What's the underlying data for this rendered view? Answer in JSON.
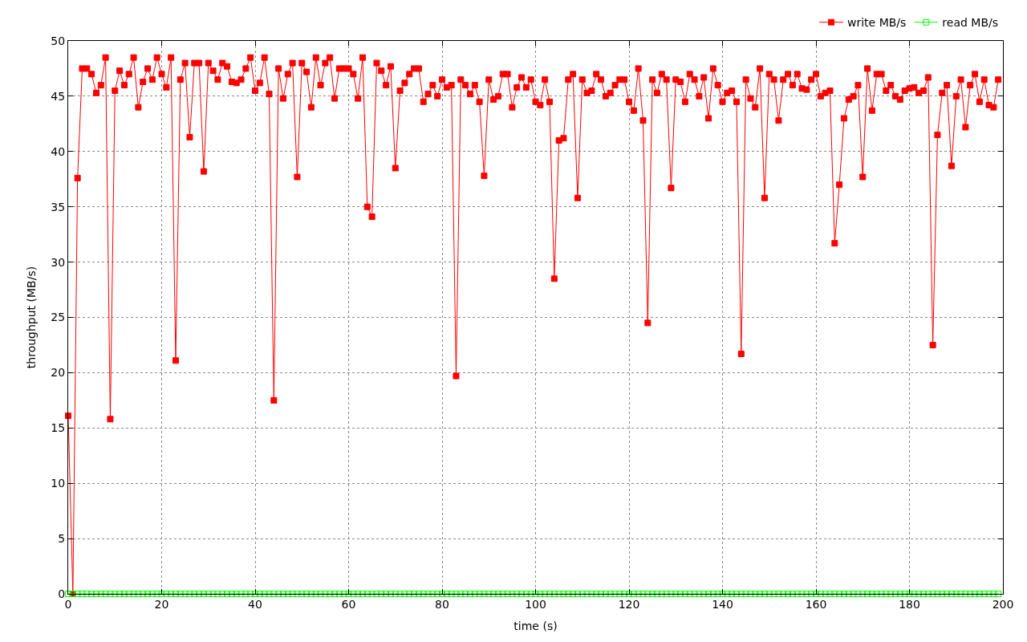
{
  "chart_data": {
    "type": "line",
    "xlabel": "time (s)",
    "ylabel": "throughput (MB/s)",
    "x": [
      0,
      1,
      2,
      3,
      4,
      5,
      6,
      7,
      8,
      9,
      10,
      11,
      12,
      13,
      14,
      15,
      16,
      17,
      18,
      19,
      20,
      21,
      22,
      23,
      24,
      25,
      26,
      27,
      28,
      29,
      30,
      31,
      32,
      33,
      34,
      35,
      36,
      37,
      38,
      39,
      40,
      41,
      42,
      43,
      44,
      45,
      46,
      47,
      48,
      49,
      50,
      51,
      52,
      53,
      54,
      55,
      56,
      57,
      58,
      59,
      60,
      61,
      62,
      63,
      64,
      65,
      66,
      67,
      68,
      69,
      70,
      71,
      72,
      73,
      74,
      75,
      76,
      77,
      78,
      79,
      80,
      81,
      82,
      83,
      84,
      85,
      86,
      87,
      88,
      89,
      90,
      91,
      92,
      93,
      94,
      95,
      96,
      97,
      98,
      99,
      100,
      101,
      102,
      103,
      104,
      105,
      106,
      107,
      108,
      109,
      110,
      111,
      112,
      113,
      114,
      115,
      116,
      117,
      118,
      119,
      120,
      121,
      122,
      123,
      124,
      125,
      126,
      127,
      128,
      129,
      130,
      131,
      132,
      133,
      134,
      135,
      136,
      137,
      138,
      139,
      140,
      141,
      142,
      143,
      144,
      145,
      146,
      147,
      148,
      149,
      150,
      151,
      152,
      153,
      154,
      155,
      156,
      157,
      158,
      159,
      160,
      161,
      162,
      163,
      164,
      165,
      166,
      167,
      168,
      169,
      170,
      171,
      172,
      173,
      174,
      175,
      176,
      177,
      178,
      179,
      180,
      181,
      182,
      183,
      184,
      185,
      186,
      187,
      188,
      189,
      190,
      191,
      192,
      193,
      194,
      195,
      196,
      197,
      198,
      199
    ],
    "series": [
      {
        "name": "write MB/s",
        "color": "#ff0000",
        "values": [
          16.1,
          0,
          37.6,
          47.5,
          47.5,
          47.0,
          45.3,
          46.0,
          48.5,
          15.8,
          45.5,
          47.3,
          46.0,
          47.0,
          48.5,
          44.0,
          46.3,
          47.5,
          46.5,
          48.5,
          47.0,
          45.8,
          48.5,
          21.1,
          46.5,
          48.0,
          41.3,
          48.0,
          48.0,
          38.2,
          48.0,
          47.3,
          46.5,
          48.0,
          47.7,
          46.3,
          46.2,
          46.5,
          47.5,
          48.5,
          45.5,
          46.2,
          48.5,
          45.2,
          17.5,
          47.5,
          44.8,
          47.0,
          48.0,
          37.7,
          48.0,
          47.2,
          44.0,
          48.5,
          46.0,
          48.0,
          48.5,
          44.8,
          47.5,
          47.5,
          47.5,
          47.0,
          44.8,
          48.5,
          35.0,
          34.1,
          48.0,
          47.3,
          46.0,
          47.7,
          38.5,
          45.5,
          46.2,
          47.0,
          47.5,
          47.5,
          44.5,
          45.2,
          46.0,
          45.0,
          46.5,
          45.8,
          46.0,
          19.7,
          46.5,
          46.0,
          45.2,
          46.0,
          44.5,
          37.8,
          46.5,
          44.7,
          45.0,
          47.0,
          47.0,
          44.0,
          45.8,
          46.7,
          45.8,
          46.5,
          44.5,
          44.2,
          46.5,
          44.5,
          28.5,
          41.0,
          41.2,
          46.5,
          47.0,
          35.8,
          46.5,
          45.3,
          45.5,
          47.0,
          46.5,
          45.0,
          45.3,
          46.0,
          46.5,
          46.5,
          44.5,
          43.7,
          47.5,
          42.8,
          24.5,
          46.5,
          45.3,
          47.0,
          46.5,
          36.7,
          46.5,
          46.3,
          44.5,
          47.0,
          46.5,
          45.0,
          46.7,
          43.0,
          47.5,
          46.0,
          44.5,
          45.3,
          45.5,
          44.5,
          21.7,
          46.5,
          44.8,
          44.0,
          47.5,
          35.8,
          47.0,
          46.5,
          42.8,
          46.5,
          47.0,
          46.0,
          47.0,
          45.7,
          45.6,
          46.5,
          47.0,
          45.0,
          45.3,
          45.5,
          31.7,
          37.0,
          43.0,
          44.7,
          45.0,
          46.0,
          37.7,
          47.5,
          43.7,
          47.0,
          47.0,
          45.5,
          46.0,
          45.0,
          44.7,
          45.5,
          45.7,
          45.8,
          45.3,
          45.5,
          46.7,
          22.5,
          41.5,
          45.3,
          46.0,
          38.7,
          45.0,
          46.5,
          42.2,
          46.0,
          47.0,
          44.5,
          46.5,
          44.2,
          44.0,
          46.5
        ]
      },
      {
        "name": "read MB/s",
        "color": "#00ff00",
        "values": [
          0,
          0,
          0,
          0,
          0,
          0,
          0,
          0,
          0,
          0,
          0,
          0,
          0,
          0,
          0,
          0,
          0,
          0,
          0,
          0,
          0,
          0,
          0,
          0,
          0,
          0,
          0,
          0,
          0,
          0,
          0,
          0,
          0,
          0,
          0,
          0,
          0,
          0,
          0,
          0,
          0,
          0,
          0,
          0,
          0,
          0,
          0,
          0,
          0,
          0,
          0,
          0,
          0,
          0,
          0,
          0,
          0,
          0,
          0,
          0,
          0,
          0,
          0,
          0,
          0,
          0,
          0,
          0,
          0,
          0,
          0,
          0,
          0,
          0,
          0,
          0,
          0,
          0,
          0,
          0,
          0,
          0,
          0,
          0,
          0,
          0,
          0,
          0,
          0,
          0,
          0,
          0,
          0,
          0,
          0,
          0,
          0,
          0,
          0,
          0,
          0,
          0,
          0,
          0,
          0,
          0,
          0,
          0,
          0,
          0,
          0,
          0,
          0,
          0,
          0,
          0,
          0,
          0,
          0,
          0,
          0,
          0,
          0,
          0,
          0,
          0,
          0,
          0,
          0,
          0,
          0,
          0,
          0,
          0,
          0,
          0,
          0,
          0,
          0,
          0,
          0,
          0,
          0,
          0,
          0,
          0,
          0,
          0,
          0,
          0,
          0,
          0,
          0,
          0,
          0,
          0,
          0,
          0,
          0,
          0,
          0,
          0,
          0,
          0,
          0,
          0,
          0,
          0,
          0,
          0,
          0,
          0,
          0,
          0,
          0,
          0,
          0,
          0,
          0,
          0,
          0,
          0,
          0,
          0,
          0,
          0,
          0,
          0,
          0,
          0,
          0,
          0,
          0,
          0,
          0,
          0,
          0,
          0,
          0,
          0
        ]
      }
    ],
    "xlim": [
      0,
      200
    ],
    "xticks": [
      0,
      20,
      40,
      60,
      80,
      100,
      120,
      140,
      160,
      180,
      200
    ],
    "ylim": [
      0,
      50
    ],
    "yticks": [
      0,
      5,
      10,
      15,
      20,
      25,
      30,
      35,
      40,
      45,
      50
    ],
    "grid": true,
    "legend": "top right",
    "marker": "square",
    "line_style": "solid"
  }
}
